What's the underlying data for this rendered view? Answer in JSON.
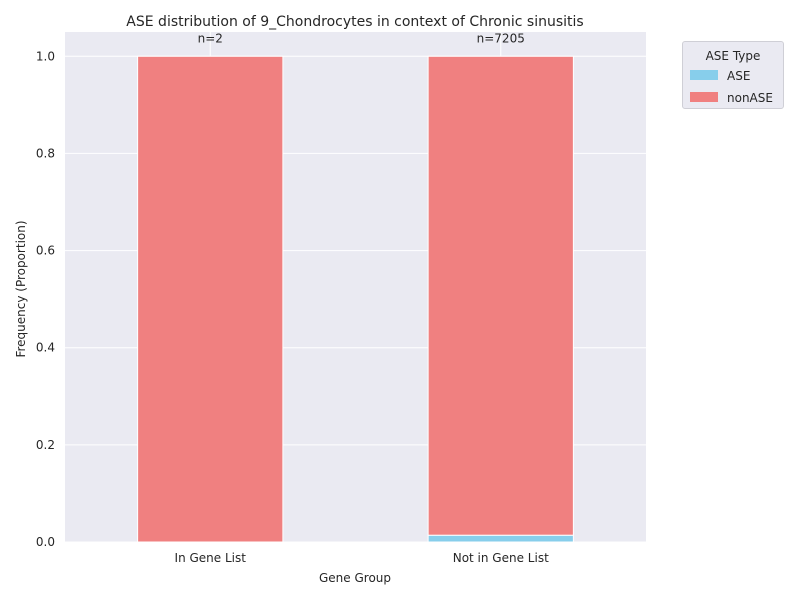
{
  "chart_data": {
    "type": "bar",
    "stacked": true,
    "title": "ASE distribution of 9_Chondrocytes in context of Chronic sinusitis",
    "xlabel": "Gene Group",
    "ylabel": "Frequency (Proportion)",
    "categories": [
      "In Gene List",
      "Not in Gene List"
    ],
    "annotations": [
      "n=2",
      "n=7205"
    ],
    "ylim": [
      0,
      1.05
    ],
    "yticks": [
      "0.0",
      "0.2",
      "0.4",
      "0.6",
      "0.8",
      "1.0"
    ],
    "grid": true,
    "legend": {
      "title": "ASE Type",
      "placement": "outside-top-right",
      "entries": [
        "ASE",
        "nonASE"
      ]
    },
    "series": [
      {
        "name": "ASE",
        "values": [
          0.0,
          0.014
        ],
        "color": "#87ceeb"
      },
      {
        "name": "nonASE",
        "values": [
          1.0,
          0.986
        ],
        "color": "#f08080"
      }
    ]
  }
}
